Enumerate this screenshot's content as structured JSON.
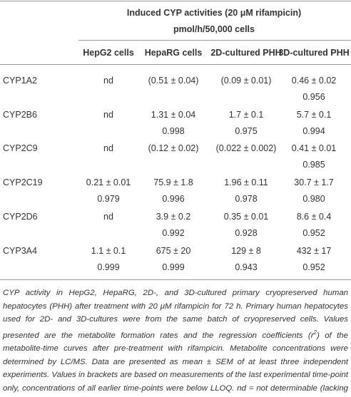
{
  "header": {
    "title": "Induced CYP activities (20 μM rifampicin)",
    "unit": "pmol/h/50,000 cells",
    "columns": [
      "HepG2 cells",
      "HepaRG cells",
      "2D-cultured PHH",
      "3D-cultured PHH"
    ]
  },
  "table": {
    "rows": [
      {
        "name": "CYP1A2",
        "values": [
          "nd",
          "(0.51 ± 0.04)",
          "(0.09 ± 0.01)",
          "0.46 ± 0.02"
        ],
        "r2": [
          null,
          null,
          null,
          "0.956"
        ]
      },
      {
        "name": "CYP2B6",
        "values": [
          "nd",
          "1.31 ± 0.04",
          "1.7 ± 0.1",
          "5.7 ± 0.1"
        ],
        "r2": [
          null,
          "0.998",
          "0.975",
          "0.994"
        ]
      },
      {
        "name": "CYP2C9",
        "values": [
          "nd",
          "(0.12 ± 0.02)",
          "(0.022 ± 0.002)",
          "0.41 ± 0.01"
        ],
        "r2": [
          null,
          null,
          null,
          "0.985"
        ]
      },
      {
        "name": "CYP2C19",
        "values": [
          "0.21 ± 0.01",
          "75.9 ± 1.8",
          "1.96 ± 0.11",
          "30.7 ± 1.7"
        ],
        "r2": [
          "0.979",
          "0.996",
          "0.978",
          "0.980"
        ]
      },
      {
        "name": "CYP2D6",
        "values": [
          "nd",
          "3.9 ± 0.2",
          "0.35 ± 0.01",
          "8.6 ± 0.4"
        ],
        "r2": [
          null,
          "0.992",
          "0.928",
          "0.952"
        ]
      },
      {
        "name": "CYP3A4",
        "values": [
          "1.1 ± 0.1",
          "675 ± 20",
          "129 ± 8",
          "432 ± 17"
        ],
        "r2": [
          "0.999",
          "0.999",
          "0.943",
          "0.952"
        ]
      }
    ]
  },
  "footnote": {
    "before": "CYP activity in HepG2, HepaRG, 2D-, and 3D-cultured primary cryopreserved human hepatocytes (PHH) after treatment with 20 μM rifampicin for 72 h. Primary human hepatocytes used for 2D- and 3D-cultures were from the same batch of cryopreserved cells. Values presented are the metabolite formation rates and the regression coefficients (r",
    "superscript": "2",
    "after": ") of the metabolite-time curves after pre-treatment with rifampicin. Metabolite concentrations were determined by LC/MS. Data are presented as mean ± SEM of at least three independent experiments. Values in brackets are based on measurements of the last experimental time-point only, concentrations of all earlier time-points were below LLOQ. nd = not determinable (lacking basal activity)."
  }
}
